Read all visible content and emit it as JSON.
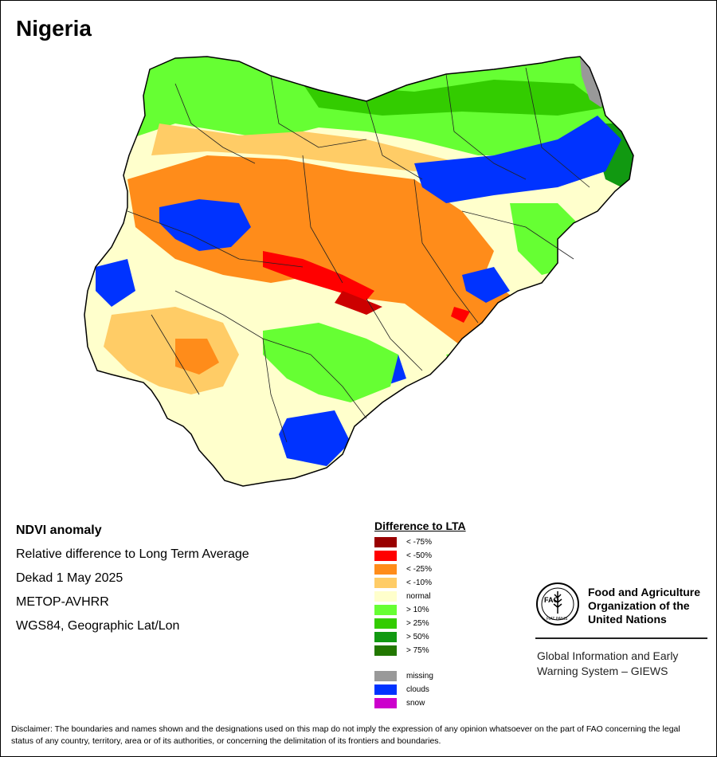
{
  "title": "Nigeria",
  "info": {
    "product": "NDVI anomaly",
    "description": "Relative difference to Long Term Average",
    "period": "Dekad 1 May 2025",
    "sensor": "METOP-AVHRR",
    "projection": "WGS84, Geographic Lat/Lon"
  },
  "legend": {
    "title": "Difference to LTA",
    "items": [
      {
        "label": "< -75%",
        "color": "#990000"
      },
      {
        "label": "< -50%",
        "color": "#ff0000"
      },
      {
        "label": "< -25%",
        "color": "#ff8c1a"
      },
      {
        "label": "< -10%",
        "color": "#ffcc66"
      },
      {
        "label": "normal",
        "color": "#ffffcc"
      },
      {
        "label": "> 10%",
        "color": "#66ff33"
      },
      {
        "label": "> 25%",
        "color": "#33cc00"
      },
      {
        "label": "> 50%",
        "color": "#119911"
      },
      {
        "label": "> 75%",
        "color": "#227700"
      }
    ],
    "extra": [
      {
        "label": "missing",
        "color": "#999999"
      },
      {
        "label": "clouds",
        "color": "#0033ff"
      },
      {
        "label": "snow",
        "color": "#cc00cc"
      }
    ]
  },
  "org": {
    "name_line1": "Food and Agriculture",
    "name_line2": "Organization of the",
    "name_line3": "United Nations",
    "system_line1": "Global Information and Early",
    "system_line2": "Warning System – GIEWS",
    "logo_text": "FAO",
    "logo_motto": "FIAT PANIS"
  },
  "disclaimer": "Disclaimer: The boundaries and names shown and the designations used on this map do not imply the expression of any opinion whatsoever on the part of FAO concerning the legal status of any country, territory, area or of its authorities, or concerning the delimitation of its frontiers and boundaries."
}
